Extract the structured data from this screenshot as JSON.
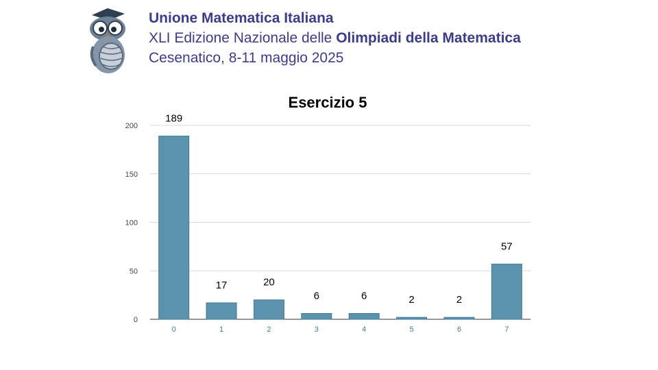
{
  "header": {
    "line1": "Unione Matematica Italiana",
    "line2_prefix": "XLI Edizione Nazionale delle ",
    "line2_bold": "Olimpiadi della Matematica",
    "line3": "Cesenatico, 8-11 maggio 2025"
  },
  "logo": {
    "icon": "owl-mascot-icon"
  },
  "chart_data": {
    "type": "bar",
    "title": "Esercizio 5",
    "categories": [
      "0",
      "1",
      "2",
      "3",
      "4",
      "5",
      "6",
      "7"
    ],
    "values": [
      189,
      17,
      20,
      6,
      6,
      2,
      2,
      57
    ],
    "yticks": [
      0,
      50,
      100,
      150,
      200
    ],
    "ylim": [
      0,
      200
    ],
    "grid": true,
    "legend": "none",
    "colors": {
      "bar": "#5b93ae",
      "bar_edge": "#3f7a96",
      "grid": "#d9d9d9",
      "axis": "#333333",
      "xtick": "#3f7a96",
      "ytick": "#444444",
      "header": "#3b3b8f"
    }
  }
}
